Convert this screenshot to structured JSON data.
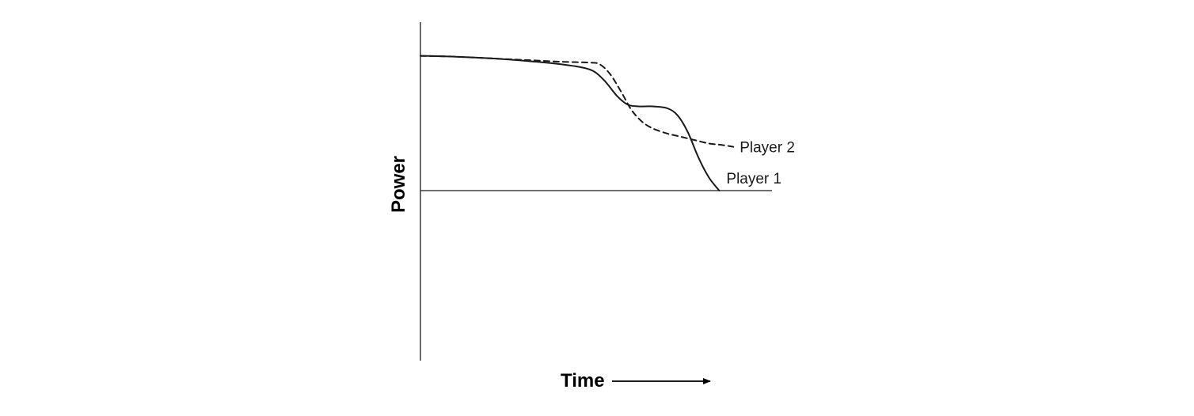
{
  "chart_data": {
    "type": "line",
    "xlabel": "Time",
    "ylabel": "Power",
    "grid": false,
    "legend": "inline labels at right end of each series",
    "xlim": [
      0,
      100
    ],
    "ylim": [
      -100,
      100
    ],
    "series": [
      {
        "name": "Player 1",
        "style": "solid",
        "color": "#1a1a1a",
        "x": [
          0,
          10,
          20,
          30,
          40,
          48,
          52,
          56,
          59,
          62,
          66,
          70,
          73,
          76,
          79,
          82,
          85
        ],
        "y": [
          80,
          79.5,
          78.5,
          77,
          75,
          72,
          66,
          56,
          51,
          50,
          50,
          49,
          45,
          35,
          20,
          8,
          0
        ]
      },
      {
        "name": "Player 2",
        "style": "dashed",
        "color": "#1a1a1a",
        "x": [
          0,
          10,
          20,
          30,
          40,
          48,
          51,
          54,
          57,
          60,
          63,
          66,
          70,
          74,
          78,
          82,
          86,
          89
        ],
        "y": [
          80,
          79.5,
          78.5,
          77.5,
          76.5,
          76,
          75,
          69,
          59,
          48,
          41,
          37,
          34,
          32,
          30,
          28,
          27,
          26
        ]
      }
    ]
  }
}
